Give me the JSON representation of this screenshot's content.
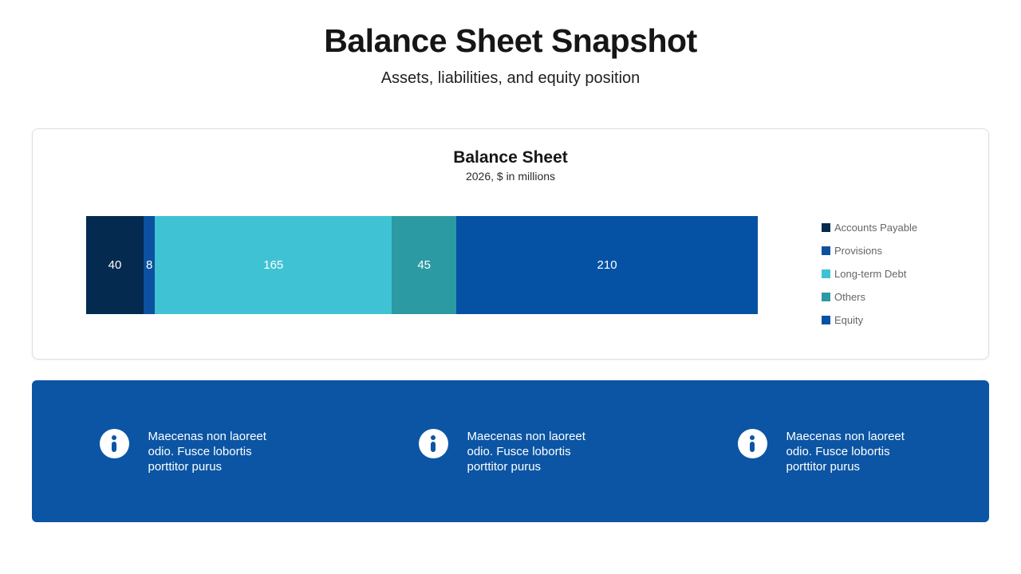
{
  "page": {
    "title": "Balance Sheet Snapshot",
    "subtitle": "Assets, liabilities, and equity position"
  },
  "chart_data": {
    "type": "bar",
    "variant": "horizontal-stacked",
    "title": "Balance Sheet",
    "subtitle": "2026, $ in millions",
    "total": 468,
    "legend_position": "right",
    "grid": false,
    "segments": [
      {
        "label": "Accounts Payable",
        "value": 40,
        "color": "#042a50"
      },
      {
        "label": "Provisions",
        "value": 8,
        "color": "#0b51a0"
      },
      {
        "label": "Long-term Debt",
        "value": 165,
        "color": "#3fc3d4"
      },
      {
        "label": "Others",
        "value": 45,
        "color": "#2b9aa3"
      },
      {
        "label": "Equity",
        "value": 210,
        "color": "#0552a5"
      }
    ]
  },
  "banner": {
    "background": "#0b55a4",
    "items": [
      {
        "icon": "info-icon",
        "text": "Maecenas non laoreet odio. Fusce lobortis porttitor purus"
      },
      {
        "icon": "info-icon",
        "text": "Maecenas non laoreet odio. Fusce lobortis porttitor purus"
      },
      {
        "icon": "info-icon",
        "text": "Maecenas non laoreet odio. Fusce lobortis porttitor purus"
      }
    ]
  }
}
